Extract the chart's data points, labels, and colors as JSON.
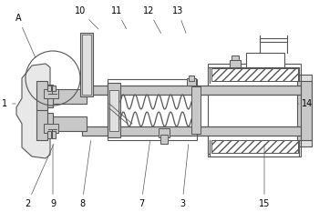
{
  "line_color": "#555555",
  "gray_light": "#e0e0e0",
  "gray_mid": "#c8c8c8",
  "white": "#ffffff",
  "lw_main": 0.8,
  "lw_thin": 0.6,
  "font_size": 7,
  "labels": [
    [
      "A",
      18,
      218
    ],
    [
      "1",
      5,
      148
    ],
    [
      "2",
      30,
      18
    ],
    [
      "3",
      208,
      18
    ],
    [
      "7",
      158,
      18
    ],
    [
      "8",
      88,
      18
    ],
    [
      "9",
      55,
      18
    ],
    [
      "10",
      88,
      232
    ],
    [
      "11",
      128,
      232
    ],
    [
      "12",
      163,
      232
    ],
    [
      "13",
      195,
      232
    ],
    [
      "14",
      330,
      148
    ],
    [
      "15",
      285,
      18
    ]
  ]
}
